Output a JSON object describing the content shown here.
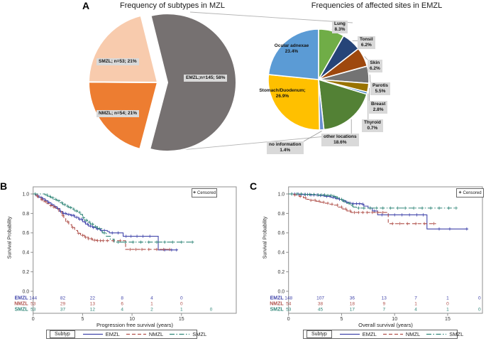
{
  "panels": {
    "a": {
      "label": "A"
    },
    "b": {
      "label": "B"
    },
    "c": {
      "label": "C"
    }
  },
  "colors": {
    "emzl_slice": "#767171",
    "nmzl_slice": "#ED7D31",
    "smzl_slice": "#F8CBAD",
    "km_emzl": "#4246AB",
    "km_nmzl": "#B0514B",
    "km_smzl": "#2F8577",
    "label_box_bg": "#D9D9D9"
  },
  "chart_data": [
    {
      "type": "pie",
      "title": "Frequency of subtypes in MZL",
      "start_angle_deg": -14,
      "clockwise": true,
      "slices": [
        {
          "name": "EMZL",
          "label": "EMZL;n=145; 58%",
          "n": 145,
          "value": 58,
          "color": "#767171",
          "exploded": true
        },
        {
          "name": "NMZL",
          "label": "NMZL; n=54; 21%",
          "n": 54,
          "value": 21,
          "color": "#ED7D31",
          "exploded": false
        },
        {
          "name": "SMZL",
          "label": "SMZL; n=53; 21%",
          "n": 53,
          "value": 21,
          "color": "#F8CBAD",
          "exploded": false
        }
      ]
    },
    {
      "type": "pie",
      "title": "Frequencies of affected sites in EMZL",
      "start_angle_deg": 0,
      "clockwise": true,
      "slices": [
        {
          "name": "Lung",
          "label": "Lung",
          "pct_label": "8.3%",
          "value": 8.3,
          "color": "#70AD47"
        },
        {
          "name": "Tonsil",
          "label": "Tonsil",
          "pct_label": "6.2%",
          "value": 6.2,
          "color": "#264478"
        },
        {
          "name": "Skin",
          "label": "Skin",
          "pct_label": "6.2%",
          "value": 6.2,
          "color": "#9E480E"
        },
        {
          "name": "Parotis",
          "label": "Parotis",
          "pct_label": "5.5%",
          "value": 5.5,
          "color": "#737373"
        },
        {
          "name": "Breast",
          "label": "Breast",
          "pct_label": "2.8%",
          "value": 2.8,
          "color": "#997300"
        },
        {
          "name": "Thyroid",
          "label": "Thyroid",
          "pct_label": "0.7%",
          "value": 0.7,
          "color": "#2E75B6"
        },
        {
          "name": "other locations",
          "label": "other locations",
          "pct_label": "18.6%",
          "value": 18.6,
          "color": "#538135"
        },
        {
          "name": "no information",
          "label": "no information",
          "pct_label": "1.4%",
          "value": 1.4,
          "color": "#698ED0"
        },
        {
          "name": "Stomach/Duodenum",
          "label": "Stomach/Duodenum;",
          "pct_label": "26.9%",
          "value": 26.9,
          "color": "#FFC000"
        },
        {
          "name": "Ocular adnexae",
          "label": "Ocular adnexae",
          "pct_label": "23.4%",
          "value": 23.4,
          "color": "#5B9BD5"
        }
      ]
    },
    {
      "type": "line",
      "subtype": "kaplan-meier",
      "xlabel": "Progression free survival (years)",
      "ylabel": "Survival Probability",
      "legend_title": "Subtyp",
      "censored_marker": "+",
      "censored_label": "Censored",
      "xlim": [
        0,
        20.5
      ],
      "ylim": [
        0.0,
        1.0
      ],
      "xticks": [
        "0",
        "5",
        "10",
        "15"
      ],
      "yticks": [
        "1.0",
        "0.8",
        "0.6",
        "0.4",
        "0.2",
        "0.0"
      ],
      "at_risk_times": [
        0,
        3,
        6,
        9,
        12,
        15,
        18
      ],
      "series": [
        {
          "name": "EMZL",
          "color": "#4246AB",
          "dash": "solid",
          "steps": [
            [
              0,
              1
            ],
            [
              0.3,
              0.98
            ],
            [
              0.6,
              0.965
            ],
            [
              0.9,
              0.95
            ],
            [
              1.2,
              0.93
            ],
            [
              1.5,
              0.91
            ],
            [
              1.8,
              0.89
            ],
            [
              2.1,
              0.87
            ],
            [
              2.4,
              0.85
            ],
            [
              2.7,
              0.82
            ],
            [
              3.0,
              0.8
            ],
            [
              3.4,
              0.79
            ],
            [
              3.8,
              0.78
            ],
            [
              4.2,
              0.76
            ],
            [
              4.6,
              0.74
            ],
            [
              5.0,
              0.715
            ],
            [
              5.3,
              0.69
            ],
            [
              5.6,
              0.67
            ],
            [
              6.0,
              0.655
            ],
            [
              6.4,
              0.64
            ],
            [
              6.8,
              0.625
            ],
            [
              7.5,
              0.615
            ],
            [
              7.7,
              0.6
            ],
            [
              9.1,
              0.565
            ],
            [
              12.65,
              0.425
            ],
            [
              14.6,
              0.425
            ]
          ],
          "censors": [
            0.5,
            0.8,
            1.0,
            1.3,
            1.6,
            1.9,
            2.2,
            2.5,
            2.8,
            3.1,
            3.3,
            3.6,
            3.9,
            4.1,
            4.4,
            4.7,
            4.9,
            5.2,
            5.5,
            5.8,
            6.1,
            6.5,
            6.9,
            7.2,
            8.0,
            8.6,
            9.4,
            9.9,
            10.5,
            11.1,
            11.8,
            13.3,
            14.0,
            14.5
          ],
          "at_risk": [
            144,
            82,
            22,
            8,
            4,
            0
          ]
        },
        {
          "name": "NMZL",
          "color": "#B0514B",
          "dash": "dashed",
          "steps": [
            [
              0,
              1
            ],
            [
              0.25,
              0.98
            ],
            [
              0.5,
              0.96
            ],
            [
              0.8,
              0.94
            ],
            [
              1.1,
              0.92
            ],
            [
              1.4,
              0.9
            ],
            [
              1.7,
              0.88
            ],
            [
              2.0,
              0.865
            ],
            [
              2.3,
              0.845
            ],
            [
              2.6,
              0.82
            ],
            [
              2.9,
              0.78
            ],
            [
              3.1,
              0.745
            ],
            [
              3.3,
              0.715
            ],
            [
              3.6,
              0.685
            ],
            [
              3.9,
              0.655
            ],
            [
              4.2,
              0.625
            ],
            [
              4.5,
              0.595
            ],
            [
              4.8,
              0.575
            ],
            [
              5.2,
              0.555
            ],
            [
              5.6,
              0.54
            ],
            [
              6.0,
              0.525
            ],
            [
              6.5,
              0.52
            ],
            [
              9.35,
              0.43
            ],
            [
              13.9,
              0.43
            ]
          ],
          "censors": [
            0.4,
            0.9,
            1.3,
            1.8,
            2.1,
            3.0,
            3.5,
            4.0,
            4.6,
            5.0,
            5.3,
            5.6,
            5.9,
            6.2,
            6.5,
            6.8,
            7.1,
            7.5,
            8.1,
            8.8,
            9.8,
            10.4,
            11.0,
            11.7,
            12.5,
            13.2,
            13.8
          ],
          "at_risk": [
            53,
            29,
            13,
            6,
            1,
            0
          ]
        },
        {
          "name": "SMZL",
          "color": "#2F8577",
          "dash": "dashdot",
          "steps": [
            [
              0,
              1
            ],
            [
              1.2,
              0.99
            ],
            [
              1.5,
              0.975
            ],
            [
              1.8,
              0.96
            ],
            [
              2.1,
              0.945
            ],
            [
              2.4,
              0.93
            ],
            [
              2.7,
              0.91
            ],
            [
              3.0,
              0.89
            ],
            [
              3.3,
              0.875
            ],
            [
              3.6,
              0.86
            ],
            [
              3.9,
              0.845
            ],
            [
              4.2,
              0.825
            ],
            [
              4.5,
              0.81
            ],
            [
              4.8,
              0.79
            ],
            [
              5.0,
              0.755
            ],
            [
              5.2,
              0.73
            ],
            [
              5.5,
              0.71
            ],
            [
              5.8,
              0.69
            ],
            [
              6.1,
              0.665
            ],
            [
              6.5,
              0.645
            ],
            [
              7.0,
              0.6
            ],
            [
              7.4,
              0.565
            ],
            [
              7.8,
              0.535
            ],
            [
              8.2,
              0.505
            ],
            [
              16.2,
              0.505
            ]
          ],
          "censors": [
            0.2,
            1.4,
            1.7,
            2.0,
            2.3,
            2.6,
            2.9,
            3.2,
            3.5,
            3.8,
            4.1,
            4.4,
            4.7,
            5.1,
            5.4,
            5.7,
            6.0,
            6.3,
            6.7,
            7.2,
            8.6,
            9.3,
            10.1,
            10.9,
            11.7,
            12.5,
            13.3,
            14.1,
            15.0,
            16.1
          ],
          "at_risk": [
            53,
            37,
            12,
            4,
            2,
            1,
            0
          ]
        }
      ]
    },
    {
      "type": "line",
      "subtype": "kaplan-meier",
      "xlabel": "Overall survival (years)",
      "ylabel": "Survival Probability",
      "legend_title": "Subtyp",
      "censored_marker": "+",
      "censored_label": "Censored",
      "xlim": [
        0,
        18.3
      ],
      "ylim": [
        0.0,
        1.0
      ],
      "xticks": [
        "0",
        "5",
        "10",
        "15"
      ],
      "yticks": [
        "1.0",
        "0.8",
        "0.6",
        "0.4",
        "0.2",
        "0.0"
      ],
      "at_risk_times": [
        0,
        3,
        6,
        9,
        12,
        15,
        18
      ],
      "series": [
        {
          "name": "EMZL",
          "color": "#4246AB",
          "dash": "solid",
          "steps": [
            [
              0,
              1
            ],
            [
              1.0,
              0.995
            ],
            [
              2.0,
              0.99
            ],
            [
              2.8,
              0.985
            ],
            [
              3.4,
              0.975
            ],
            [
              4.0,
              0.965
            ],
            [
              4.4,
              0.955
            ],
            [
              4.8,
              0.945
            ],
            [
              5.1,
              0.93
            ],
            [
              5.4,
              0.915
            ],
            [
              5.7,
              0.905
            ],
            [
              6.0,
              0.9
            ],
            [
              6.9,
              0.895
            ],
            [
              7.1,
              0.875
            ],
            [
              7.5,
              0.855
            ],
            [
              7.9,
              0.825
            ],
            [
              8.4,
              0.785
            ],
            [
              13.0,
              0.785
            ],
            [
              13.05,
              0.64
            ],
            [
              16.9,
              0.64
            ]
          ],
          "censors": [
            0.3,
            0.6,
            0.9,
            1.2,
            1.5,
            1.8,
            2.1,
            2.4,
            2.7,
            3.0,
            3.3,
            3.6,
            3.9,
            4.2,
            4.5,
            4.8,
            5.2,
            5.5,
            5.8,
            6.1,
            6.4,
            6.7,
            7.0,
            7.7,
            8.1,
            8.8,
            9.4,
            10.0,
            10.7,
            11.4,
            12.1,
            12.7,
            14.2,
            15.2,
            16.8
          ],
          "at_risk": [
            148,
            107,
            36,
            13,
            7,
            1,
            0
          ]
        },
        {
          "name": "NMZL",
          "color": "#B0514B",
          "dash": "dashed",
          "steps": [
            [
              0,
              1
            ],
            [
              0.5,
              0.99
            ],
            [
              1.0,
              0.975
            ],
            [
              1.4,
              0.96
            ],
            [
              1.7,
              0.945
            ],
            [
              2.0,
              0.935
            ],
            [
              2.6,
              0.925
            ],
            [
              3.0,
              0.915
            ],
            [
              3.4,
              0.905
            ],
            [
              3.8,
              0.895
            ],
            [
              4.3,
              0.885
            ],
            [
              4.7,
              0.865
            ],
            [
              5.1,
              0.845
            ],
            [
              5.5,
              0.825
            ],
            [
              5.9,
              0.81
            ],
            [
              9.3,
              0.81
            ],
            [
              9.4,
              0.695
            ],
            [
              13.9,
              0.695
            ]
          ],
          "censors": [
            0.6,
            1.1,
            1.6,
            2.1,
            2.5,
            2.9,
            3.3,
            3.7,
            4.1,
            4.6,
            5.0,
            5.4,
            5.8,
            6.2,
            6.6,
            7.0,
            7.4,
            7.9,
            8.4,
            8.9,
            9.8,
            10.5,
            11.2,
            12.0,
            12.8,
            13.7
          ],
          "at_risk": [
            54,
            38,
            18,
            9,
            1,
            0
          ]
        },
        {
          "name": "SMZL",
          "color": "#2F8577",
          "dash": "dashdot",
          "steps": [
            [
              0,
              1
            ],
            [
              1.5,
              0.995
            ],
            [
              2.5,
              0.99
            ],
            [
              3.5,
              0.985
            ],
            [
              4.2,
              0.975
            ],
            [
              4.5,
              0.96
            ],
            [
              4.8,
              0.945
            ],
            [
              5.1,
              0.925
            ],
            [
              5.4,
              0.905
            ],
            [
              5.8,
              0.885
            ],
            [
              6.1,
              0.865
            ],
            [
              6.4,
              0.855
            ],
            [
              15.8,
              0.855
            ]
          ],
          "censors": [
            0.3,
            0.8,
            1.2,
            1.6,
            2.0,
            2.4,
            2.8,
            3.1,
            3.4,
            3.7,
            4.0,
            4.3,
            4.6,
            5.0,
            5.3,
            5.7,
            6.0,
            6.6,
            7.1,
            7.7,
            8.3,
            8.9,
            9.6,
            10.3,
            11.0,
            11.8,
            12.6,
            13.4,
            14.2,
            15.1,
            15.8
          ],
          "at_risk": [
            53,
            45,
            17,
            7,
            4,
            1,
            0
          ]
        }
      ]
    }
  ]
}
